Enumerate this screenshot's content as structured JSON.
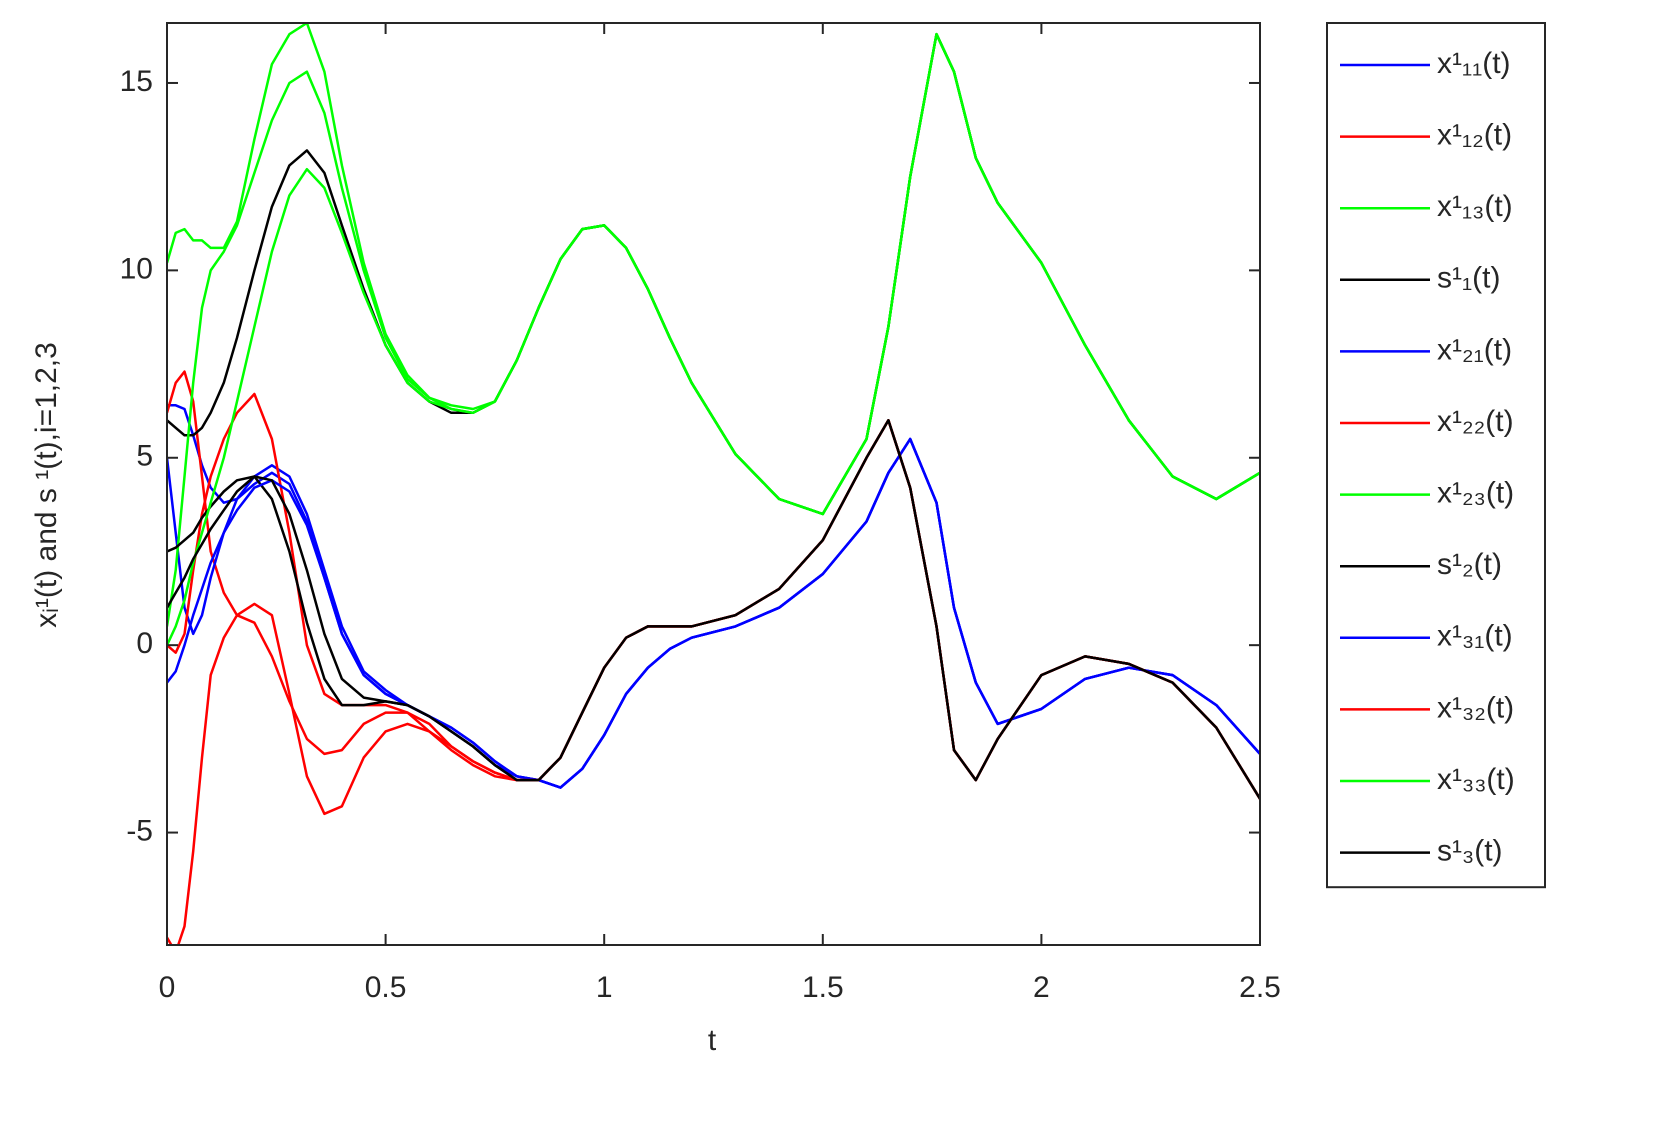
{
  "chart_data": {
    "type": "line",
    "xlabel": "t",
    "ylabel": "xᵢ¹(t) and s ¹(t),i=1,2,3",
    "xlim": [
      0,
      2.5
    ],
    "ylim": [
      -8,
      16.6
    ],
    "xticks": [
      0,
      0.5,
      1,
      1.5,
      2,
      2.5
    ],
    "yticks": [
      -5,
      0,
      5,
      10,
      15
    ],
    "legend": "outside-right",
    "x": [
      0,
      0.02,
      0.04,
      0.06,
      0.08,
      0.1,
      0.13,
      0.16,
      0.2,
      0.24,
      0.28,
      0.32,
      0.36,
      0.4,
      0.45,
      0.5,
      0.55,
      0.6,
      0.65,
      0.7,
      0.75,
      0.8,
      0.85,
      0.9,
      0.95,
      1.0,
      1.05,
      1.1,
      1.15,
      1.2,
      1.3,
      1.4,
      1.5,
      1.6,
      1.65,
      1.7,
      1.76,
      1.8,
      1.85,
      1.9,
      2.0,
      2.1,
      2.2,
      2.3,
      2.4,
      2.5
    ],
    "series": [
      {
        "name": "x¹₁₁(t)",
        "color": "#0000ff",
        "values": [
          6.4,
          6.4,
          6.3,
          5.6,
          4.8,
          4.2,
          3.8,
          3.9,
          4.3,
          4.6,
          4.3,
          3.3,
          1.8,
          0.3,
          -0.8,
          -1.3,
          -1.6,
          -1.9,
          -2.3,
          -2.7,
          -3.2,
          -3.5,
          -3.6,
          -3.8,
          -3.3,
          -2.4,
          -1.3,
          -0.6,
          -0.1,
          0.2,
          0.5,
          1.0,
          1.9,
          3.3,
          4.6,
          5.5,
          3.8,
          1.0,
          -1.0,
          -2.1,
          -1.7,
          -0.9,
          -0.6,
          -0.8,
          -1.6,
          -2.9
        ]
      },
      {
        "name": "x¹₁₂(t)",
        "color": "#ff0000",
        "values": [
          6.2,
          7,
          7.3,
          6.5,
          4.5,
          2.5,
          1.4,
          0.8,
          0.6,
          -0.3,
          -1.5,
          -2.5,
          -2.9,
          -2.8,
          -2.1,
          -1.8,
          -1.8,
          -2.1,
          -2.7,
          -3.1,
          -3.4,
          -3.6,
          -3.6,
          -3.0,
          -1.8,
          -0.6,
          0.2,
          0.5,
          0.5,
          0.5,
          0.8,
          1.5,
          2.8,
          5.0,
          6.0,
          4.2,
          0.5,
          -2.8,
          -3.6,
          -2.5,
          -0.8,
          -0.3,
          -0.5,
          -1.0,
          -2.2,
          -4.1
        ]
      },
      {
        "name": "x¹₁₃(t)",
        "color": "#00ff00",
        "values": [
          10.2,
          11.0,
          11.1,
          10.8,
          10.8,
          10.6,
          10.6,
          11.3,
          13.5,
          15.5,
          16.3,
          16.6,
          15.3,
          12.8,
          10.2,
          8.3,
          7.2,
          6.6,
          6.4,
          6.3,
          6.5,
          7.6,
          9.0,
          10.3,
          11.1,
          11.2,
          10.6,
          9.5,
          8.2,
          7.0,
          5.1,
          3.9,
          3.5,
          5.5,
          8.5,
          12.5,
          16.3,
          15.3,
          13.0,
          11.8,
          10.2,
          8.0,
          6.0,
          4.5,
          3.9,
          4.6
        ]
      },
      {
        "name": "s¹₁(t)",
        "color": "#000000",
        "values": [
          6,
          5.8,
          5.6,
          5.6,
          5.8,
          6.2,
          7,
          8.2,
          10,
          11.7,
          12.8,
          13.2,
          12.6,
          11.2,
          9.5,
          8.0,
          7.0,
          6.5,
          6.2,
          6.2,
          6.5,
          7.6,
          9.0,
          10.3,
          11.1,
          11.2,
          10.6,
          9.5,
          8.2,
          7.0,
          5.1,
          3.9,
          3.5,
          5.5,
          8.5,
          12.5,
          16.3,
          15.3,
          13.0,
          11.8,
          10.2,
          8.0,
          6.0,
          4.5,
          3.9,
          4.6
        ]
      },
      {
        "name": "x¹₂₁(t)",
        "color": "#0000ff",
        "values": [
          5,
          3,
          1,
          0.3,
          0.8,
          1.8,
          3.0,
          3.9,
          4.5,
          4.8,
          4.5,
          3.5,
          2.0,
          0.5,
          -0.7,
          -1.2,
          -1.6,
          -1.9,
          -2.2,
          -2.6,
          -3.1,
          -3.5,
          -3.6,
          -3.8,
          -3.3,
          -2.4,
          -1.3,
          -0.6,
          -0.1,
          0.2,
          0.5,
          1.0,
          1.9,
          3.3,
          4.6,
          5.5,
          3.8,
          1.0,
          -1.0,
          -2.1,
          -1.7,
          -0.9,
          -0.6,
          -0.8,
          -1.6,
          -2.9
        ]
      },
      {
        "name": "x¹₂₂(t)",
        "color": "#ff0000",
        "values": [
          0,
          -0.2,
          0.3,
          2,
          3.5,
          4.5,
          5.5,
          6.2,
          6.7,
          5.5,
          3,
          0,
          -1.3,
          -1.6,
          -1.6,
          -1.6,
          -1.8,
          -2.3,
          -2.8,
          -3.2,
          -3.5,
          -3.6,
          -3.6,
          -3.0,
          -1.8,
          -0.6,
          0.2,
          0.5,
          0.5,
          0.5,
          0.8,
          1.5,
          2.8,
          5.0,
          6.0,
          4.2,
          0.5,
          -2.8,
          -3.6,
          -2.5,
          -0.8,
          -0.3,
          -0.5,
          -1.0,
          -2.2,
          -4.1
        ]
      },
      {
        "name": "x¹₂₃(t)",
        "color": "#00ff00",
        "values": [
          0.5,
          2,
          4.5,
          7,
          9,
          10,
          10.5,
          11.2,
          12.6,
          14,
          15,
          15.3,
          14.2,
          12.2,
          10,
          8.2,
          7.1,
          6.6,
          6.3,
          6.2,
          6.5,
          7.6,
          9.0,
          10.3,
          11.1,
          11.2,
          10.6,
          9.5,
          8.2,
          7.0,
          5.1,
          3.9,
          3.5,
          5.5,
          8.5,
          12.5,
          16.3,
          15.3,
          13.0,
          11.8,
          10.2,
          8.0,
          6.0,
          4.5,
          3.9,
          4.6
        ]
      },
      {
        "name": "s¹₂(t)",
        "color": "#000000",
        "values": [
          2.5,
          2.6,
          2.8,
          3.0,
          3.4,
          3.7,
          4.1,
          4.4,
          4.5,
          3.9,
          2.5,
          0.6,
          -0.9,
          -1.6,
          -1.6,
          -1.5,
          -1.6,
          -1.9,
          -2.3,
          -2.7,
          -3.2,
          -3.6,
          -3.6,
          -3.0,
          -1.8,
          -0.6,
          0.2,
          0.5,
          0.5,
          0.5,
          0.8,
          1.5,
          2.8,
          5.0,
          6.0,
          4.2,
          0.5,
          -2.8,
          -3.6,
          -2.5,
          -0.8,
          -0.3,
          -0.5,
          -1.0,
          -2.2,
          -4.1
        ]
      },
      {
        "name": "x¹₃₁(t)",
        "color": "#0000ff",
        "values": [
          -1,
          -0.7,
          0,
          0.8,
          1.5,
          2.2,
          3.0,
          3.6,
          4.2,
          4.4,
          4.1,
          3.2,
          1.8,
          0.3,
          -0.8,
          -1.3,
          -1.6,
          -1.9,
          -2.2,
          -2.6,
          -3.1,
          -3.5,
          -3.6,
          -3.8,
          -3.3,
          -2.4,
          -1.3,
          -0.6,
          -0.1,
          0.2,
          0.5,
          1.0,
          1.9,
          3.3,
          4.6,
          5.5,
          3.8,
          1.0,
          -1.0,
          -2.1,
          -1.7,
          -0.9,
          -0.6,
          -0.8,
          -1.6,
          -2.9
        ]
      },
      {
        "name": "x¹₃₂(t)",
        "color": "#ff0000",
        "values": [
          -7.8,
          -8.2,
          -7.5,
          -5.5,
          -3,
          -0.8,
          0.2,
          0.8,
          1.1,
          0.8,
          -1.3,
          -3.5,
          -4.5,
          -4.3,
          -3.0,
          -2.3,
          -2.1,
          -2.3,
          -2.7,
          -3.1,
          -3.4,
          -3.6,
          -3.6,
          -3.0,
          -1.8,
          -0.6,
          0.2,
          0.5,
          0.5,
          0.5,
          0.8,
          1.5,
          2.8,
          5.0,
          6.0,
          4.2,
          0.5,
          -2.8,
          -3.6,
          -2.5,
          -0.8,
          -0.3,
          -0.5,
          -1.0,
          -2.2,
          -4.1
        ]
      },
      {
        "name": "x¹₃₃(t)",
        "color": "#00ff00",
        "values": [
          0,
          0.5,
          1.2,
          2.2,
          3,
          3.8,
          5,
          6.5,
          8.5,
          10.5,
          12,
          12.7,
          12.2,
          11,
          9.4,
          8,
          7,
          6.5,
          6.3,
          6.2,
          6.5,
          7.6,
          9.0,
          10.3,
          11.1,
          11.2,
          10.6,
          9.5,
          8.2,
          7.0,
          5.1,
          3.9,
          3.5,
          5.5,
          8.5,
          12.5,
          16.3,
          15.3,
          13.0,
          11.8,
          10.2,
          8.0,
          6.0,
          4.5,
          3.9,
          4.6
        ]
      },
      {
        "name": "s¹₃(t)",
        "color": "#000000",
        "values": [
          1,
          1.4,
          1.8,
          2.3,
          2.7,
          3.1,
          3.6,
          4.1,
          4.5,
          4.4,
          3.5,
          2,
          0.3,
          -0.9,
          -1.4,
          -1.5,
          -1.6,
          -1.9,
          -2.3,
          -2.7,
          -3.2,
          -3.6,
          -3.6,
          -3.0,
          -1.8,
          -0.6,
          0.2,
          0.5,
          0.5,
          0.5,
          0.8,
          1.5,
          2.8,
          5.0,
          6.0,
          4.2,
          0.5,
          -2.8,
          -3.6,
          -2.5,
          -0.8,
          -0.3,
          -0.5,
          -1.0,
          -2.2,
          -4.1
        ]
      }
    ]
  }
}
